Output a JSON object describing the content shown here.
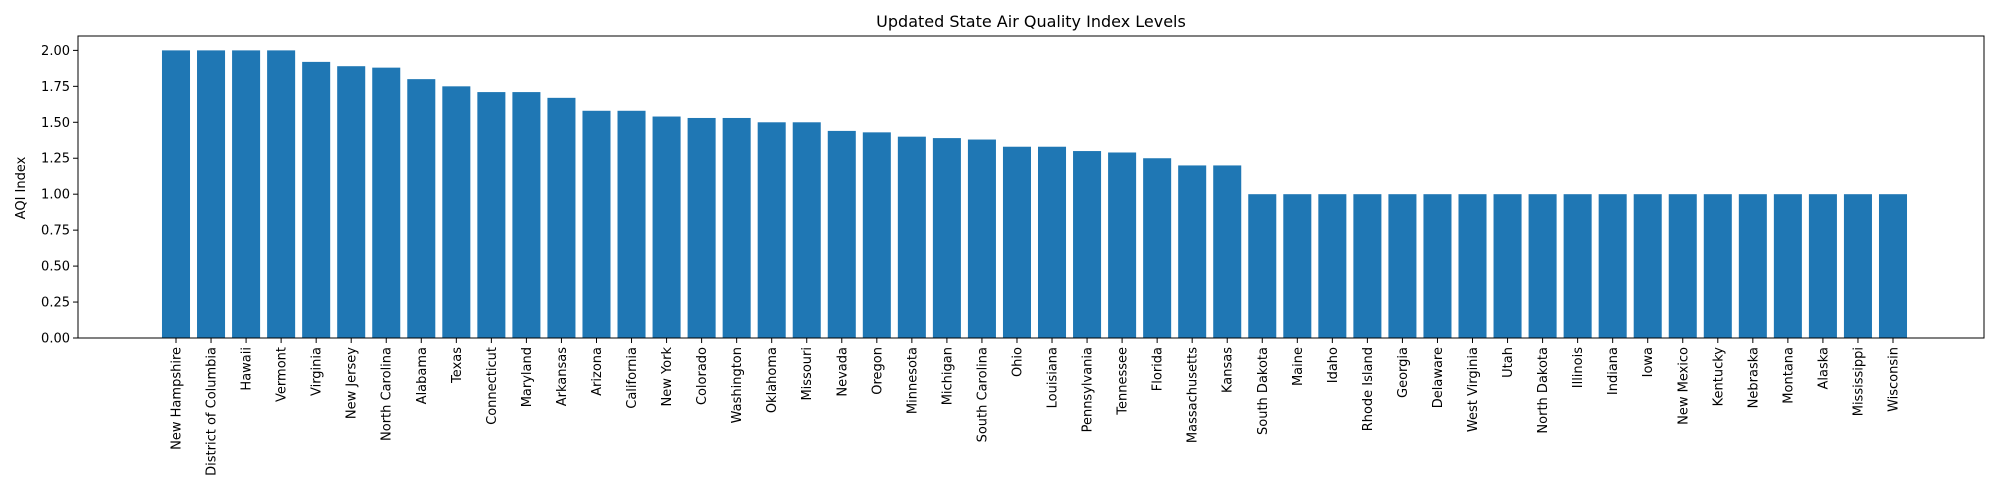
{
  "chart_data": {
    "type": "bar",
    "title": "Updated State Air Quality Index Levels",
    "xlabel": "",
    "ylabel": "AQI Index",
    "ylim": [
      0,
      2.1
    ],
    "yticks": [
      "0.00",
      "0.25",
      "0.50",
      "0.75",
      "1.00",
      "1.25",
      "1.50",
      "1.75",
      "2.00"
    ],
    "grid": false,
    "bar_color": "#1f77b4",
    "categories": [
      "New Hampshire",
      "District of Columbia",
      "Hawaii",
      "Vermont",
      "Virginia",
      "New Jersey",
      "North Carolina",
      "Alabama",
      "Texas",
      "Connecticut",
      "Maryland",
      "Arkansas",
      "Arizona",
      "California",
      "New York",
      "Colorado",
      "Washington",
      "Oklahoma",
      "Missouri",
      "Nevada",
      "Oregon",
      "Minnesota",
      "Michigan",
      "South Carolina",
      "Ohio",
      "Louisiana",
      "Pennsylvania",
      "Tennessee",
      "Florida",
      "Massachusetts",
      "Kansas",
      "South Dakota",
      "Maine",
      "Idaho",
      "Rhode Island",
      "Georgia",
      "Delaware",
      "West Virginia",
      "Utah",
      "North Dakota",
      "Illinois",
      "Indiana",
      "Iowa",
      "New Mexico",
      "Kentucky",
      "Nebraska",
      "Montana",
      "Alaska",
      "Mississippi",
      "Wisconsin"
    ],
    "values": [
      2.0,
      2.0,
      2.0,
      2.0,
      1.92,
      1.89,
      1.88,
      1.8,
      1.75,
      1.71,
      1.71,
      1.67,
      1.58,
      1.58,
      1.54,
      1.53,
      1.53,
      1.5,
      1.5,
      1.44,
      1.43,
      1.4,
      1.39,
      1.38,
      1.33,
      1.33,
      1.3,
      1.29,
      1.25,
      1.2,
      1.2,
      1.0,
      1.0,
      1.0,
      1.0,
      1.0,
      1.0,
      1.0,
      1.0,
      1.0,
      1.0,
      1.0,
      1.0,
      1.0,
      1.0,
      1.0,
      1.0,
      1.0,
      1.0,
      1.0
    ]
  }
}
